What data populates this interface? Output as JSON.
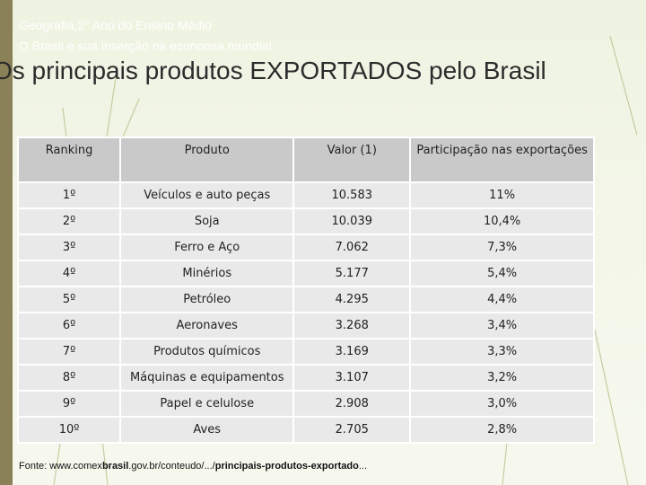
{
  "header": {
    "line1": "Geografia,2° Ano do Ensino Médio",
    "line2": "O Brasil e sua inserção na economia mundial"
  },
  "title": "Os principais produtos EXPORTADOS pelo Brasil",
  "table": {
    "headers": [
      "Ranking",
      "Produto",
      "Valor (1)",
      "Participação nas exportações"
    ],
    "rows": [
      [
        "1º",
        "Veículos e auto peças",
        "10.583",
        "11%"
      ],
      [
        "2º",
        "Soja",
        "10.039",
        "10,4%"
      ],
      [
        "3º",
        "Ferro e Aço",
        "7.062",
        "7,3%"
      ],
      [
        "4º",
        "Minérios",
        "5.177",
        "5,4%"
      ],
      [
        "5º",
        "Petróleo",
        "4.295",
        "4,4%"
      ],
      [
        "6º",
        "Aeronaves",
        "3.268",
        "3,4%"
      ],
      [
        "7º",
        "Produtos químicos",
        "3.169",
        "3,3%"
      ],
      [
        "8º",
        "Máquinas e equipamentos",
        "3.107",
        "3,2%"
      ],
      [
        "9º",
        "Papel e celulose",
        "2.908",
        "3,0%"
      ],
      [
        "10º",
        "Aves",
        "2.705",
        "2,8%"
      ]
    ]
  },
  "footer": {
    "prefix": "Fonte: ",
    "url_start": "www.comex",
    "url_bold1": "brasil",
    "url_mid": ".gov.br/conteudo/.../",
    "url_bold2": "principais-produtos-exportado",
    "url_end": "..."
  },
  "colors": {
    "left_bar": "#8a8159",
    "header_cell": "#c9c9c9",
    "body_cell": "#e9e9e9"
  }
}
